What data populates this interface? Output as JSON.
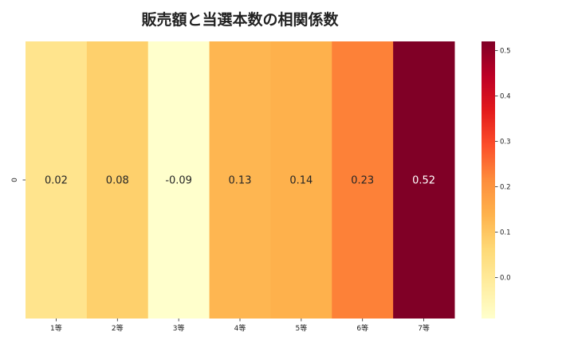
{
  "chart_data": {
    "type": "heatmap",
    "title": "販売額と当選本数の相関係数",
    "xlabel": "",
    "ylabel": "",
    "categories": [
      "1等",
      "2等",
      "3等",
      "4等",
      "5等",
      "6等",
      "7等"
    ],
    "rows": [
      "0"
    ],
    "values": [
      [
        0.02,
        0.08,
        -0.09,
        0.13,
        0.14,
        0.23,
        0.52
      ]
    ],
    "value_labels": [
      "0.02",
      "0.08",
      "-0.09",
      "0.13",
      "0.14",
      "0.23",
      "0.52"
    ],
    "colormap": "YlOrRd",
    "colorbar": {
      "min": -0.09,
      "max": 0.52,
      "ticks": [
        0.0,
        0.1,
        0.2,
        0.3,
        0.4,
        0.5
      ],
      "tick_labels": [
        "0.0",
        "0.1",
        "0.2",
        "0.3",
        "0.4",
        "0.5"
      ],
      "placement": "right"
    },
    "colors": {
      "low": "#ffffcc",
      "high": "#800026",
      "text_dark": "#262626",
      "text_light": "#ffffff"
    }
  }
}
